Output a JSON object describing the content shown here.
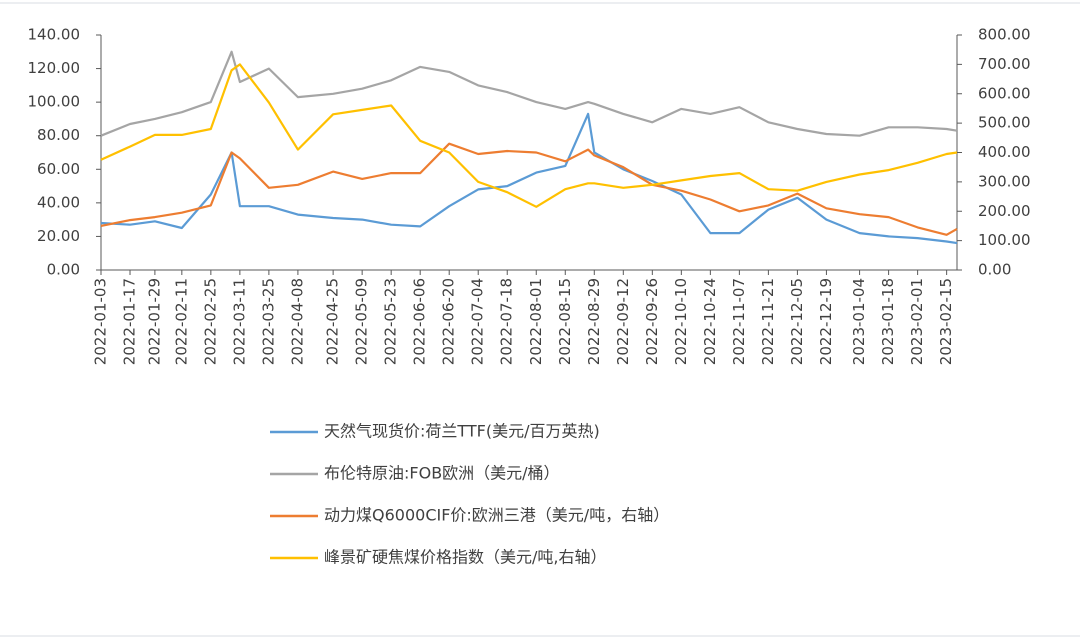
{
  "chart_data": {
    "type": "line",
    "x": [
      "2022-01-03",
      "2022-01-17",
      "2022-01-29",
      "2022-02-11",
      "2022-02-25",
      "2022-03-07",
      "2022-03-11",
      "2022-03-25",
      "2022-04-08",
      "2022-04-25",
      "2022-05-09",
      "2022-05-23",
      "2022-06-06",
      "2022-06-20",
      "2022-07-04",
      "2022-07-18",
      "2022-08-01",
      "2022-08-15",
      "2022-08-26",
      "2022-08-29",
      "2022-09-12",
      "2022-09-26",
      "2022-10-10",
      "2022-10-24",
      "2022-11-07",
      "2022-11-21",
      "2022-12-05",
      "2022-12-19",
      "2023-01-04",
      "2023-01-18",
      "2023-02-01",
      "2023-02-15",
      "2023-02-20"
    ],
    "xlim": [
      "2022-01-03",
      "2023-02-20"
    ],
    "xticks": [
      "2022-01-03",
      "2022-01-17",
      "2022-01-29",
      "2022-02-11",
      "2022-02-25",
      "2022-03-11",
      "2022-03-25",
      "2022-04-08",
      "2022-04-25",
      "2022-05-09",
      "2022-05-23",
      "2022-06-06",
      "2022-06-20",
      "2022-07-04",
      "2022-07-18",
      "2022-08-01",
      "2022-08-15",
      "2022-08-29",
      "2022-09-12",
      "2022-09-26",
      "2022-10-10",
      "2022-10-24",
      "2022-11-07",
      "2022-11-21",
      "2022-12-05",
      "2022-12-19",
      "2023-01-04",
      "2023-01-18",
      "2023-02-01",
      "2023-02-15"
    ],
    "ylim": [
      0,
      140
    ],
    "yticks": [
      {
        "value": 0,
        "label": "0.00"
      },
      {
        "value": 20,
        "label": "20.00"
      },
      {
        "value": 40,
        "label": "40.00"
      },
      {
        "value": 60,
        "label": "60.00"
      },
      {
        "value": 80,
        "label": "80.00"
      },
      {
        "value": 100,
        "label": "100.00"
      },
      {
        "value": 120,
        "label": "120.00"
      },
      {
        "value": 140,
        "label": "140.00"
      }
    ],
    "y2lim": [
      0,
      800
    ],
    "y2ticks": [
      {
        "value": 0,
        "label": "0.00"
      },
      {
        "value": 100,
        "label": "100.00"
      },
      {
        "value": 200,
        "label": "200.00"
      },
      {
        "value": 300,
        "label": "300.00"
      },
      {
        "value": 400,
        "label": "400.00"
      },
      {
        "value": 500,
        "label": "500.00"
      },
      {
        "value": 600,
        "label": "600.00"
      },
      {
        "value": 700,
        "label": "700.00"
      },
      {
        "value": 800,
        "label": "800.00"
      }
    ],
    "series": [
      {
        "name": "天然气现货价:荷兰TTF(美元/百万英热)",
        "color": "#5b9bd5",
        "values": [
          28,
          27,
          29,
          25,
          45,
          70,
          38,
          38,
          33,
          31,
          30,
          27,
          26,
          38,
          48,
          50,
          58,
          62,
          93,
          70,
          60,
          53,
          45,
          22,
          22,
          36,
          43,
          30,
          22,
          20,
          19,
          17,
          16
        ]
      },
      {
        "name": "布伦特原油:FOB欧洲（美元/桶）",
        "color": "#a5a5a5",
        "values": [
          80,
          87,
          90,
          94,
          100,
          130,
          112,
          120,
          103,
          105,
          108,
          113,
          121,
          118,
          110,
          106,
          100,
          96,
          100,
          99,
          93,
          88,
          96,
          93,
          97,
          88,
          84,
          81,
          80,
          85,
          85,
          84,
          83
        ]
      },
      {
        "name": "动力煤Q6000CIF价:欧洲三港（美元/吨，右轴）",
        "color": "#ed7d31",
        "axis": "y2",
        "values": [
          150,
          170,
          180,
          195,
          220,
          400,
          380,
          280,
          290,
          335,
          310,
          330,
          330,
          430,
          395,
          405,
          400,
          370,
          410,
          390,
          350,
          290,
          270,
          240,
          200,
          220,
          260,
          210,
          190,
          180,
          145,
          120,
          140
        ]
      },
      {
        "name": "峰景矿硬焦煤价格指数（美元/吨,右轴）",
        "color": "#ffc000",
        "axis": "y2",
        "values": [
          375,
          420,
          460,
          460,
          480,
          680,
          700,
          570,
          410,
          530,
          545,
          560,
          440,
          400,
          300,
          265,
          215,
          275,
          295,
          295,
          280,
          290,
          305,
          320,
          330,
          275,
          270,
          300,
          325,
          340,
          365,
          395,
          400
        ]
      }
    ]
  }
}
